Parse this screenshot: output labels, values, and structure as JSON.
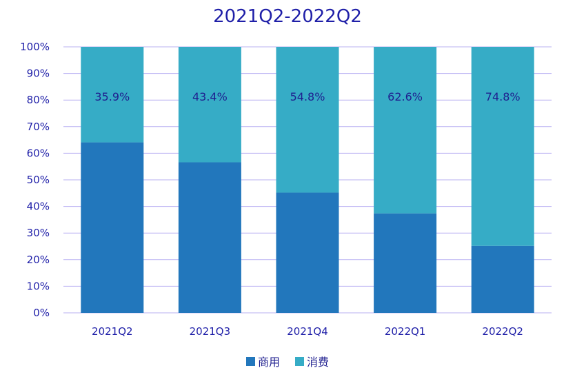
{
  "chart_data": {
    "type": "bar",
    "stacked": true,
    "title": "2021Q2-2022Q2",
    "categories": [
      "2021Q2",
      "2021Q3",
      "2021Q4",
      "2022Q1",
      "2022Q2"
    ],
    "series": [
      {
        "name": "商用",
        "values": [
          64.1,
          56.6,
          45.2,
          37.4,
          25.2
        ],
        "color": "#2277BC"
      },
      {
        "name": "消费",
        "values": [
          35.9,
          43.4,
          54.8,
          62.6,
          74.8
        ],
        "color": "#36ACC6",
        "labels": [
          "35.9%",
          "43.4%",
          "54.8%",
          "62.6%",
          "74.8%"
        ]
      }
    ],
    "yticks": [
      "0%",
      "10%",
      "20%",
      "30%",
      "40%",
      "50%",
      "60%",
      "70%",
      "80%",
      "90%",
      "100%"
    ],
    "ylim": [
      0,
      100
    ],
    "grid": true,
    "legend": "bottom"
  }
}
